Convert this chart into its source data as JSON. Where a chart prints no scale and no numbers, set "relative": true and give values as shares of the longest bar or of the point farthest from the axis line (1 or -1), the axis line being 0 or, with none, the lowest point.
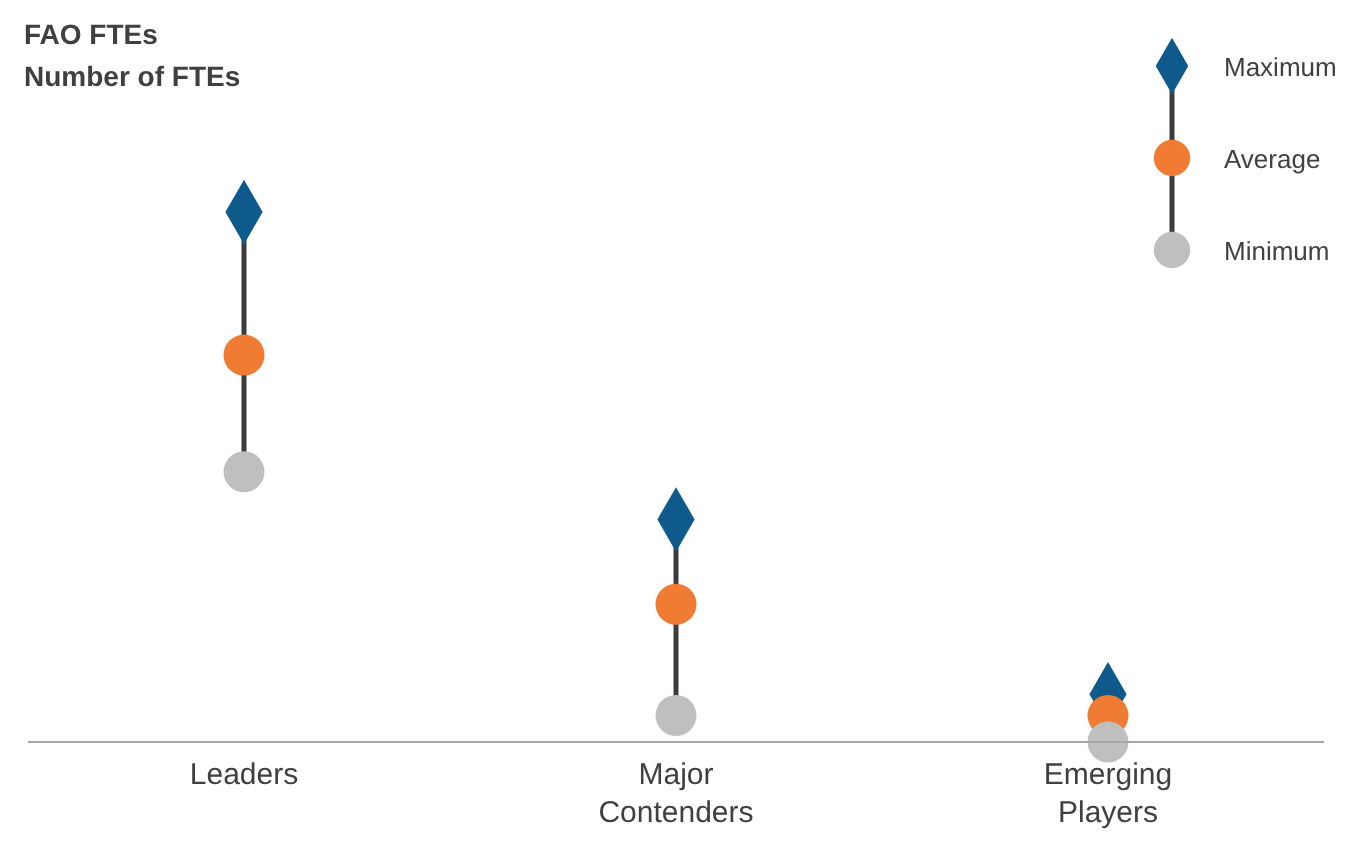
{
  "chart_data": {
    "type": "scatter",
    "title": "FAO FTEs",
    "subtitle": "Number of FTEs",
    "relative": true,
    "categories": [
      "Leaders",
      "Major Contenders",
      "Emerging Players"
    ],
    "legend": "top right",
    "series": [
      {
        "name": "Maximum",
        "color": "#0f5a8c",
        "marker": "diamond",
        "values": [
          1,
          0.42,
          0.09
        ]
      },
      {
        "name": "Average",
        "color": "#f07b32",
        "marker": "circle",
        "values": [
          0.73,
          0.26,
          0.05
        ]
      },
      {
        "name": "Minimum",
        "color": "#bfbfbf",
        "marker": "circle",
        "values": [
          0.51,
          0.05,
          0
        ]
      }
    ]
  }
}
